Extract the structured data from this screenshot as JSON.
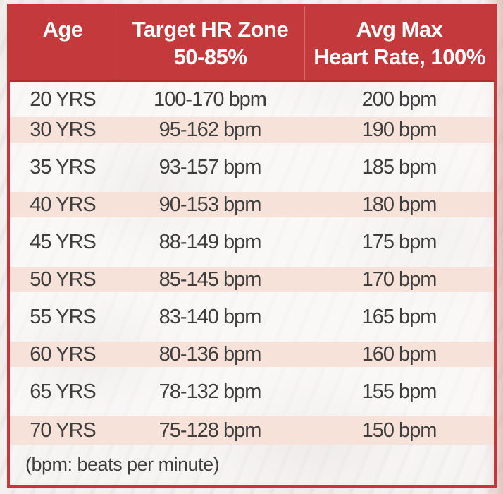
{
  "chart_data": {
    "type": "table",
    "columns": [
      "Age",
      "Target HR Zone 50-85%",
      "Avg Max Heart Rate, 100%"
    ],
    "rows": [
      {
        "age": "20 YRS",
        "zone": "100-170 bpm",
        "max": "200 bpm"
      },
      {
        "age": "30 YRS",
        "zone": "95-162 bpm",
        "max": "190 bpm"
      },
      {
        "age": "35 YRS",
        "zone": "93-157 bpm",
        "max": "185 bpm"
      },
      {
        "age": "40 YRS",
        "zone": "90-153 bpm",
        "max": "180 bpm"
      },
      {
        "age": "45 YRS",
        "zone": "88-149 bpm",
        "max": "175 bpm"
      },
      {
        "age": "50 YRS",
        "zone": "85-145 bpm",
        "max": "170 bpm"
      },
      {
        "age": "55 YRS",
        "zone": "83-140 bpm",
        "max": "165 bpm"
      },
      {
        "age": "60 YRS",
        "zone": "80-136 bpm",
        "max": "160 bpm"
      },
      {
        "age": "65 YRS",
        "zone": "78-132 bpm",
        "max": "155 bpm"
      },
      {
        "age": "70 YRS",
        "zone": "75-128 bpm",
        "max": "150 bpm"
      }
    ],
    "note": "(bpm: beats per minute)"
  },
  "header": {
    "age": "Age",
    "zone_line1": "Target HR Zone",
    "zone_line2": "50-85%",
    "max_line1": "Avg Max",
    "max_line2": "Heart Rate, 100%"
  },
  "colors": {
    "header_bg": "#c43a3c",
    "border": "#c7363a",
    "alt_row_bg": "#f7e2d9",
    "text": "#3e3e3e",
    "header_text": "#ffffff"
  }
}
